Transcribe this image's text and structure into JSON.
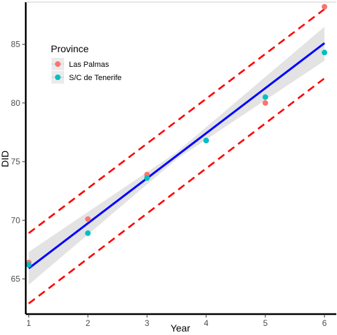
{
  "chart_data": {
    "type": "scatter",
    "xlabel": "Year",
    "ylabel": "DID",
    "xlim": [
      0.95,
      6.2
    ],
    "ylim": [
      62.0,
      88.6
    ],
    "x_ticks": [
      1,
      2,
      3,
      4,
      5,
      6
    ],
    "y_ticks": [
      65,
      70,
      75,
      80,
      85
    ],
    "grid": false,
    "legend": {
      "title": "Province",
      "placement": "top-left",
      "entries": [
        "Las Palmas",
        "S/C de Tenerife"
      ]
    },
    "series": [
      {
        "name": "Las Palmas",
        "color": "#f8766d",
        "points": [
          {
            "x": 1,
            "y": 66.4
          },
          {
            "x": 2,
            "y": 70.1
          },
          {
            "x": 3,
            "y": 73.9
          },
          {
            "x": 4,
            "y": 76.8
          },
          {
            "x": 5,
            "y": 80.0
          },
          {
            "x": 6,
            "y": 88.2
          }
        ]
      },
      {
        "name": "S/C de Tenerife",
        "color": "#00bfc4",
        "points": [
          {
            "x": 1,
            "y": 66.2
          },
          {
            "x": 2,
            "y": 68.9
          },
          {
            "x": 3,
            "y": 73.6
          },
          {
            "x": 4,
            "y": 76.8
          },
          {
            "x": 5,
            "y": 80.5
          },
          {
            "x": 6,
            "y": 84.3
          }
        ]
      }
    ],
    "fit_line": {
      "x": [
        1,
        6
      ],
      "y": [
        65.9,
        85.1
      ],
      "color": "#0000ff"
    },
    "confidence_band": {
      "x": [
        1,
        3.5,
        6
      ],
      "upper": [
        67.3,
        75.8,
        86.5
      ],
      "lower": [
        64.5,
        75.2,
        83.6
      ],
      "color": "#d9d9d9"
    },
    "prediction_bounds": [
      {
        "x": [
          1,
          6
        ],
        "y": [
          68.9,
          88.0
        ],
        "color": "#ff0000"
      },
      {
        "x": [
          1,
          6
        ],
        "y": [
          62.9,
          82.1
        ],
        "color": "#ff0000"
      }
    ]
  }
}
